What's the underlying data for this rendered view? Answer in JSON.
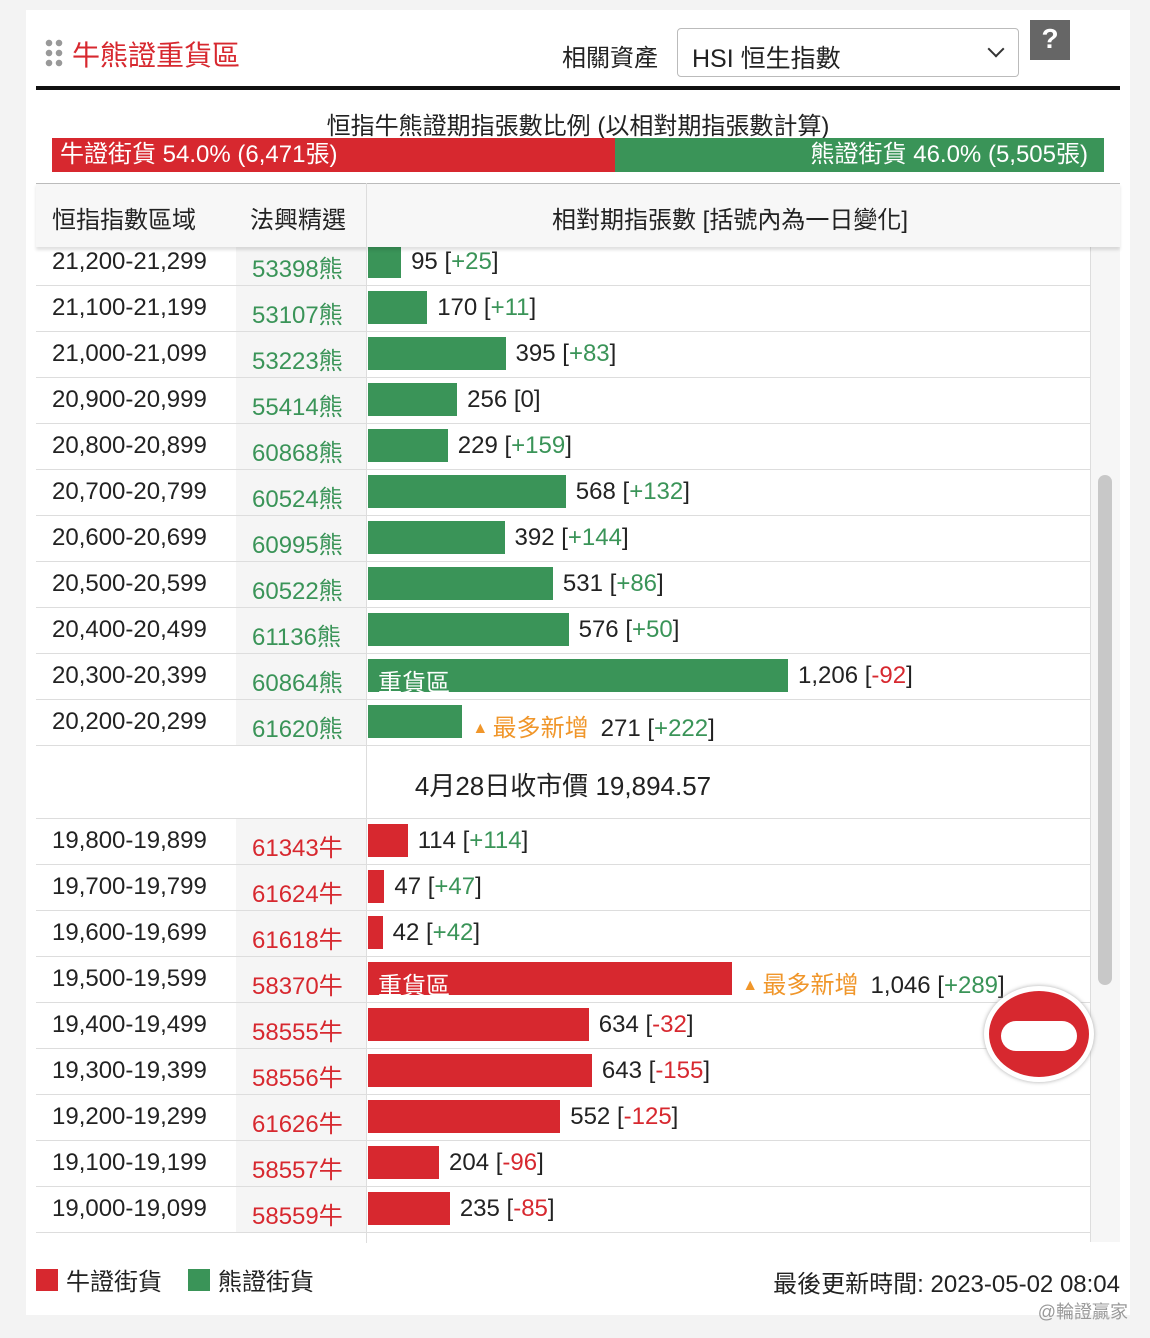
{
  "header": {
    "title": "牛熊證重貨區",
    "asset_label": "相關資產",
    "asset_value": "HSI 恒生指數",
    "help": "?"
  },
  "ratio": {
    "title": "恒指牛熊證期指張數比例 (以相對期指張數計算)",
    "bull": {
      "label": "牛證街貨",
      "value": 54,
      "value_label": "54.0%",
      "count": "(6,471張)"
    },
    "bear": {
      "label": "熊證街貨",
      "value": 46,
      "value_label": "46.0%",
      "count": "(5,505張)"
    }
  },
  "table": {
    "columns": [
      "恒指指數區域",
      "法興精選",
      "相對期指張數 [括號內為一日變化]"
    ],
    "bear_rows": [
      {
        "range": "21,200-21,299",
        "code": "53398熊",
        "contracts": 95,
        "change": "+25"
      },
      {
        "range": "21,100-21,199",
        "code": "53107熊",
        "contracts": 170,
        "change": "+11"
      },
      {
        "range": "21,000-21,099",
        "code": "53223熊",
        "contracts": 395,
        "change": "+83"
      },
      {
        "range": "20,900-20,999",
        "code": "55414熊",
        "contracts": 256,
        "change": "0"
      },
      {
        "range": "20,800-20,899",
        "code": "60868熊",
        "contracts": 229,
        "change": "+159"
      },
      {
        "range": "20,700-20,799",
        "code": "60524熊",
        "contracts": 568,
        "change": "+132"
      },
      {
        "range": "20,600-20,699",
        "code": "60995熊",
        "contracts": 392,
        "change": "+144"
      },
      {
        "range": "20,500-20,599",
        "code": "60522熊",
        "contracts": 531,
        "change": "+86"
      },
      {
        "range": "20,400-20,499",
        "code": "61136熊",
        "contracts": 576,
        "change": "+50"
      },
      {
        "range": "20,300-20,399",
        "code": "60864熊",
        "contracts": 1206,
        "contracts_label": "1,206",
        "change": "-92",
        "heavy": "重貨區"
      },
      {
        "range": "20,200-20,299",
        "code": "61620熊",
        "contracts": 271,
        "change": "+222",
        "most_added": "最多新增"
      }
    ],
    "close_price": "4月28日收市價 19,894.57",
    "bull_rows": [
      {
        "range": "19,800-19,899",
        "code": "61343牛",
        "contracts": 114,
        "change": "+114"
      },
      {
        "range": "19,700-19,799",
        "code": "61624牛",
        "contracts": 47,
        "change": "+47"
      },
      {
        "range": "19,600-19,699",
        "code": "61618牛",
        "contracts": 42,
        "change": "+42"
      },
      {
        "range": "19,500-19,599",
        "code": "58370牛",
        "contracts": 1046,
        "contracts_label": "1,046",
        "change": "+289",
        "heavy": "重貨區",
        "most_added": "最多新增"
      },
      {
        "range": "19,400-19,499",
        "code": "58555牛",
        "contracts": 634,
        "change": "-32"
      },
      {
        "range": "19,300-19,399",
        "code": "58556牛",
        "contracts": 643,
        "change": "-155"
      },
      {
        "range": "19,200-19,299",
        "code": "61626牛",
        "contracts": 552,
        "change": "-125"
      },
      {
        "range": "19,100-19,199",
        "code": "58557牛",
        "contracts": 204,
        "change": "-96"
      },
      {
        "range": "19,000-19,099",
        "code": "58559牛",
        "contracts": 235,
        "change": "-85"
      }
    ]
  },
  "footer": {
    "bull_legend": "牛證街貨",
    "bear_legend": "熊證街貨",
    "updated": "最後更新時間: 2023-05-02 08:04",
    "watermark": "@輪證贏家"
  }
}
